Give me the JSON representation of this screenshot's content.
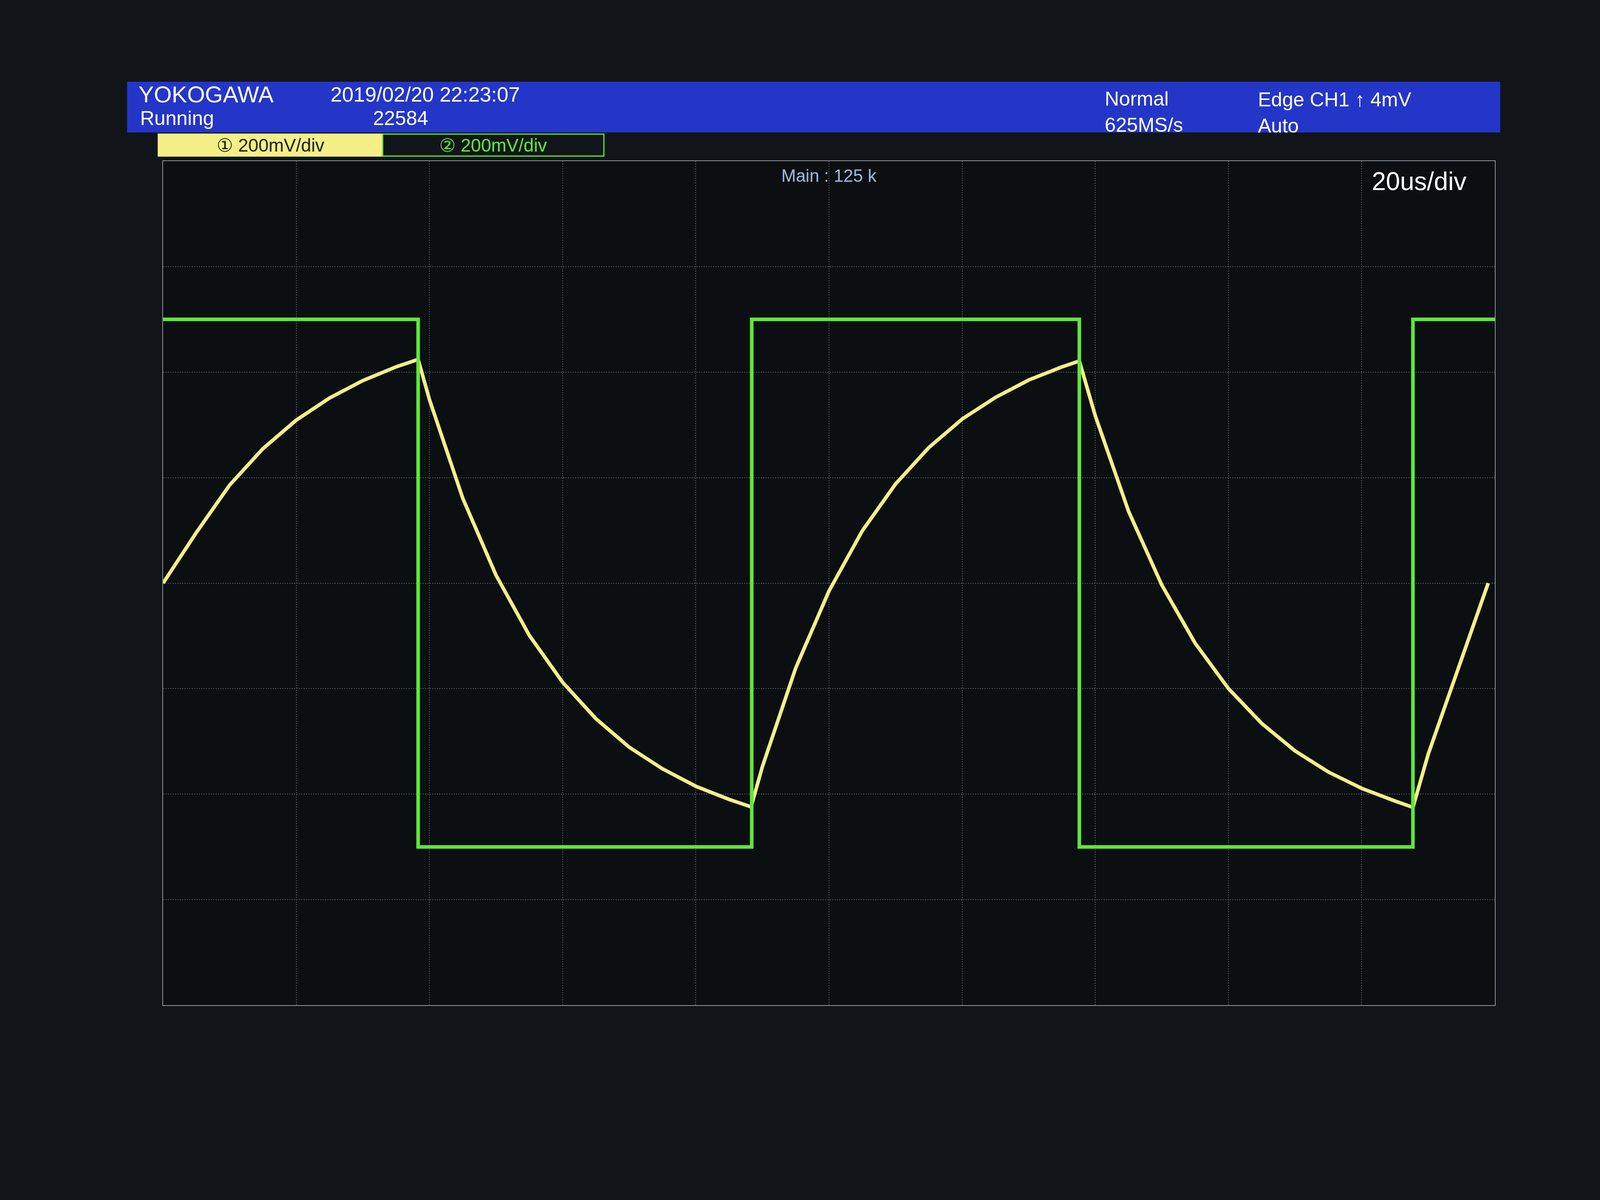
{
  "chart_data": {
    "type": "line",
    "annotations": [
      "YOKOGAWA",
      "Running",
      "2019/02/20 22:23:07",
      "22584",
      "Normal",
      "625MS/s",
      "Edge CH1 ↑ 4mV",
      "Auto",
      "Main : 125 k",
      "20us/div"
    ],
    "series": [
      {
        "name": "① 200mV/div",
        "color": "#f4ef86",
        "x": [
          0,
          5,
          10,
          15,
          20,
          25,
          30,
          35,
          38.3,
          40,
          45,
          50,
          55,
          60,
          65,
          70,
          75,
          80,
          85,
          88.3,
          90,
          95,
          100,
          105,
          110,
          115,
          120,
          125,
          130,
          135,
          137.6,
          140,
          145,
          150,
          155,
          160,
          165,
          170,
          175,
          180,
          185,
          187.7,
          190,
          195,
          199
        ],
        "values": [
          0,
          96,
          186,
          255,
          309,
          351,
          384,
          410,
          424,
          348,
          161,
          15,
          -99,
          -188,
          -257,
          -311,
          -352,
          -385,
          -410,
          -424,
          -348,
          -161,
          -15,
          99,
          188,
          257,
          311,
          352,
          385,
          410,
          421,
          317,
          136,
          -4,
          -114,
          -200,
          -266,
          -318,
          -358,
          -389,
          -413,
          -425,
          -324,
          -142,
          0
        ]
      },
      {
        "name": "② 200mV/div",
        "color": "#5fe83a",
        "x": [
          0,
          38.3,
          38.3,
          88.4,
          88.4,
          137.6,
          137.6,
          187.7,
          187.7,
          200
        ],
        "values": [
          500,
          500,
          -500,
          -500,
          500,
          500,
          -500,
          -500,
          500,
          500
        ]
      }
    ],
    "xlim": [
      0,
      200
    ],
    "xticks": [
      0,
      20,
      40,
      60,
      80,
      100,
      120,
      140,
      160,
      180,
      200
    ],
    "ylim": [
      -800,
      800
    ],
    "yticks": [
      -800,
      -600,
      -400,
      -200,
      0,
      200,
      400,
      600,
      800
    ],
    "grid": true,
    "tick_labels": false
  }
}
